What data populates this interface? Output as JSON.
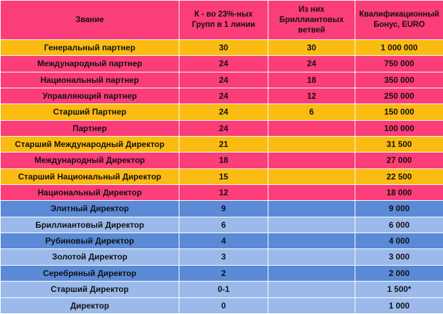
{
  "table": {
    "columns": [
      "Звание",
      "К - во 23%-ных Групп в 1 линии",
      "Из них Бриллиантовых ветвей",
      "Квалификационный Бонус, EURO"
    ],
    "rows": [
      {
        "rank": "Генеральный партнер",
        "groups": "30",
        "diamond": "30",
        "bonus": "1 000 000",
        "band": "orange"
      },
      {
        "rank": "Международный партнер",
        "groups": "24",
        "diamond": "24",
        "bonus": "750 000",
        "band": "pink"
      },
      {
        "rank": "Национальный партнер",
        "groups": "24",
        "diamond": "18",
        "bonus": "350 000",
        "band": "pink"
      },
      {
        "rank": "Управляющий партнер",
        "groups": "24",
        "diamond": "12",
        "bonus": "250 000",
        "band": "pink"
      },
      {
        "rank": "Старший Партнер",
        "groups": "24",
        "diamond": "6",
        "bonus": "150 000",
        "band": "orange"
      },
      {
        "rank": "Партнер",
        "groups": "24",
        "diamond": "",
        "bonus": "100 000",
        "band": "pink"
      },
      {
        "rank": "Старший Международный Директор",
        "groups": "21",
        "diamond": "",
        "bonus": "31 500",
        "band": "orange"
      },
      {
        "rank": "Международный Директор",
        "groups": "18",
        "diamond": "",
        "bonus": "27 000",
        "band": "pink"
      },
      {
        "rank": "Старший Национальный Директор",
        "groups": "15",
        "diamond": "",
        "bonus": "22 500",
        "band": "orange"
      },
      {
        "rank": "Национальный Директор",
        "groups": "12",
        "diamond": "",
        "bonus": "18 000",
        "band": "pink"
      },
      {
        "rank": "Элитный Директор",
        "groups": "9",
        "diamond": "",
        "bonus": "9 000",
        "band": "blue"
      },
      {
        "rank": "Бриллиантовый Директор",
        "groups": "6",
        "diamond": "",
        "bonus": "6 000",
        "band": "light"
      },
      {
        "rank": "Рубиновый Директор",
        "groups": "4",
        "diamond": "",
        "bonus": "4 000",
        "band": "blue"
      },
      {
        "rank": "Золотой Директор",
        "groups": "3",
        "diamond": "",
        "bonus": "3 000",
        "band": "light"
      },
      {
        "rank": "Серебряный Директор",
        "groups": "2",
        "diamond": "",
        "bonus": "2 000",
        "band": "blue"
      },
      {
        "rank": "Старший Директор",
        "groups": "0-1",
        "diamond": "",
        "bonus": "1 500*",
        "band": "light"
      },
      {
        "rank": "Директор",
        "groups": "0",
        "diamond": "",
        "bonus": "1 000",
        "band": "light"
      }
    ]
  },
  "colors": {
    "pink": "#fb3d79",
    "orange": "#fbbb12",
    "blue": "#5b8ad6",
    "light": "#9bbaeb"
  }
}
